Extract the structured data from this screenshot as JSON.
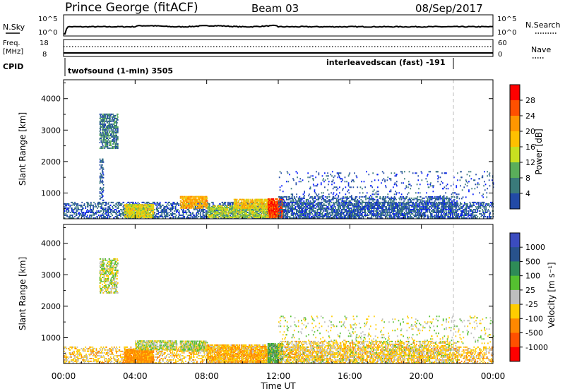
{
  "header": {
    "station": "Prince George (fitACF)",
    "beam": "Beam 03",
    "date": "08/Sep/2017"
  },
  "strip_panels": {
    "nsky_label": "N.Sky",
    "nsky_ticks": [
      "10^5",
      "10^0"
    ],
    "nsearch_label": "N.Search",
    "nsearch_ticks": [
      "10^5",
      "10^0"
    ],
    "freq_label_1": "Freq.",
    "freq_label_2": "[MHz]",
    "freq_ticks": [
      "18",
      "8"
    ],
    "nave_label": "Nave",
    "nave_ticks": [
      "60",
      "0"
    ],
    "cpid_label": "CPID",
    "cpid_segments": [
      {
        "name": "twofsound (1-min) 3505"
      },
      {
        "name": "interleavedscan (fast) -191"
      }
    ]
  },
  "power_panel": {
    "ylabel": "Slant Range [km]",
    "yticks": [
      "4000",
      "3000",
      "2000",
      "1000"
    ],
    "colorbar_label": "Power [dB]",
    "colorbar_ticks": [
      "28",
      "24",
      "20",
      "16",
      "12",
      "8",
      "4"
    ],
    "colorbar_colors": [
      "#ff0000",
      "#ff5000",
      "#ff9600",
      "#ffc000",
      "#c8e020",
      "#5aae5a",
      "#3a7a7a",
      "#224aa6",
      "#0018ff"
    ]
  },
  "velocity_panel": {
    "ylabel": "Slant Range [km]",
    "yticks": [
      "4000",
      "3000",
      "2000",
      "1000"
    ],
    "colorbar_label": "Velocity [m s⁻¹]",
    "colorbar_ticks": [
      "1000",
      "500",
      "100",
      "25",
      "-25",
      "-100",
      "-500",
      "-1000"
    ],
    "colorbar_colors": [
      "#3b4cc0",
      "#28528c",
      "#2e8b57",
      "#55c030",
      "#bebebe",
      "#ffcc00",
      "#ff8800",
      "#ff5000",
      "#ff0000"
    ]
  },
  "x_axis": {
    "ticks": [
      "00:00",
      "04:00",
      "08:00",
      "12:00",
      "16:00",
      "20:00",
      "00:00"
    ],
    "label": "Time UT"
  },
  "chart_data": [
    {
      "type": "heatmap",
      "title": "Prince George (fitACF)",
      "quantity": "Power [dB]",
      "xlabel": "Time UT",
      "ylabel": "Slant Range [km]",
      "x_range_hours": [
        0,
        24
      ],
      "ylim": [
        180,
        4600
      ],
      "color_range": [
        0,
        30
      ],
      "regions": [
        {
          "t_start": 0.0,
          "t_end": 24.0,
          "r_start": 180,
          "r_end": 700,
          "level": 6,
          "density": 0.35
        },
        {
          "t_start": 2.0,
          "t_end": 3.0,
          "r_start": 2400,
          "r_end": 3500,
          "level": 8,
          "density": 0.5
        },
        {
          "t_start": 2.0,
          "t_end": 2.2,
          "r_start": 700,
          "r_end": 2100,
          "level": 6,
          "density": 0.3
        },
        {
          "t_start": 3.4,
          "t_end": 5.0,
          "r_start": 200,
          "r_end": 650,
          "level": 16,
          "density": 0.8
        },
        {
          "t_start": 6.5,
          "t_end": 8.0,
          "r_start": 500,
          "r_end": 900,
          "level": 20,
          "density": 0.7
        },
        {
          "t_start": 8.0,
          "t_end": 12.0,
          "r_start": 200,
          "r_end": 600,
          "level": 14,
          "density": 0.6
        },
        {
          "t_start": 9.5,
          "t_end": 11.5,
          "r_start": 500,
          "r_end": 800,
          "level": 18,
          "density": 0.6
        },
        {
          "t_start": 11.4,
          "t_end": 12.2,
          "r_start": 200,
          "r_end": 800,
          "level": 26,
          "density": 0.8
        },
        {
          "t_start": 12.0,
          "t_end": 24.0,
          "r_start": 800,
          "r_end": 1700,
          "level": 5,
          "density": 0.06
        },
        {
          "t_start": 12.0,
          "t_end": 22.0,
          "r_start": 180,
          "r_end": 900,
          "level": 6,
          "density": 0.3
        }
      ]
    },
    {
      "type": "heatmap",
      "quantity": "Velocity [m s⁻¹]",
      "xlabel": "Time UT",
      "ylabel": "Slant Range [km]",
      "x_range_hours": [
        0,
        24
      ],
      "ylim": [
        180,
        4600
      ],
      "color_range": [
        -1000,
        1000
      ],
      "regions": [
        {
          "t_start": 0.0,
          "t_end": 24.0,
          "r_start": 180,
          "r_end": 700,
          "level": -60,
          "density": 0.3
        },
        {
          "t_start": 2.0,
          "t_end": 3.0,
          "r_start": 2400,
          "r_end": 3500,
          "level": 0,
          "density": 0.45
        },
        {
          "t_start": 3.4,
          "t_end": 5.0,
          "r_start": 200,
          "r_end": 650,
          "level": -150,
          "density": 0.85
        },
        {
          "t_start": 4.0,
          "t_end": 6.3,
          "r_start": 600,
          "r_end": 900,
          "level": 0,
          "density": 0.55
        },
        {
          "t_start": 6.5,
          "t_end": 8.0,
          "r_start": 550,
          "r_end": 900,
          "level": 0,
          "density": 0.7
        },
        {
          "t_start": 8.0,
          "t_end": 12.0,
          "r_start": 200,
          "r_end": 750,
          "level": -90,
          "density": 0.6
        },
        {
          "t_start": 11.4,
          "t_end": 12.2,
          "r_start": 200,
          "r_end": 800,
          "level": 80,
          "density": 0.7
        },
        {
          "t_start": 12.0,
          "t_end": 24.0,
          "r_start": 800,
          "r_end": 1700,
          "level": 0,
          "density": 0.06
        },
        {
          "t_start": 12.0,
          "t_end": 22.0,
          "r_start": 180,
          "r_end": 900,
          "level": -40,
          "density": 0.35
        }
      ]
    }
  ]
}
